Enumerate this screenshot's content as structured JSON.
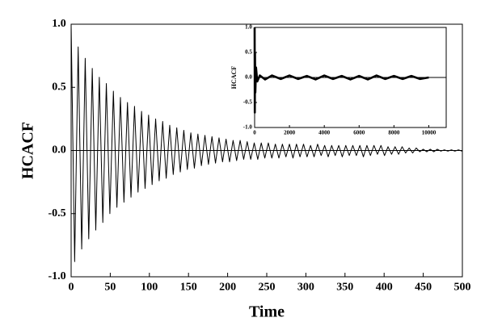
{
  "chart_data": [
    {
      "type": "line",
      "x_label": "Time",
      "y_label": "HCACF",
      "color": "#000000",
      "zero_line": true,
      "xlim": [
        0,
        500
      ],
      "ylim": [
        -1,
        1
      ],
      "xticks": [
        0,
        50,
        100,
        150,
        200,
        250,
        300,
        350,
        400,
        450,
        500
      ],
      "yticks": [
        {
          "value": -1,
          "label": "-1.0"
        },
        {
          "value": -0.5,
          "label": "-0.5"
        },
        {
          "value": 0,
          "label": "0.0"
        },
        {
          "value": 0.5,
          "label": "0.5"
        },
        {
          "value": 1,
          "label": "1.0"
        }
      ],
      "x": [
        0,
        4.5,
        9,
        13.5,
        18,
        22.5,
        27,
        31.5,
        36,
        40.5,
        45,
        49.5,
        54,
        58.5,
        63,
        67.5,
        72,
        76.5,
        81,
        85.5,
        90,
        94.5,
        99,
        103.5,
        108,
        112.5,
        117,
        121.5,
        126,
        130.5,
        135,
        139.5,
        144,
        148.5,
        153,
        157.5,
        162,
        166.5,
        171,
        175.5,
        180,
        184.5,
        189,
        193.5,
        198,
        202.5,
        207,
        211.5,
        216,
        220.5,
        225,
        229.5,
        234,
        238.5,
        243,
        247.5,
        252,
        256.5,
        261,
        265.5,
        270,
        274.5,
        279,
        283.5,
        288,
        292.5,
        297,
        301.5,
        306,
        310.5,
        315,
        319.5,
        324,
        328.5,
        333,
        337.5,
        342,
        346.5,
        351,
        355.5,
        360,
        364.5,
        369,
        373.5,
        378,
        382.5,
        387,
        391.5,
        396,
        400.5,
        405,
        409.5,
        414,
        418.5,
        423,
        427.5,
        432,
        436.5,
        441,
        445.5,
        450,
        454.5,
        459,
        463.5,
        468,
        472.5,
        477,
        481.5,
        486,
        490.5,
        495,
        499.5
      ],
      "values": [
        1.0,
        -0.88,
        0.82,
        -0.78,
        0.73,
        -0.7,
        0.65,
        -0.63,
        0.58,
        -0.57,
        0.53,
        -0.5,
        0.47,
        -0.45,
        0.42,
        -0.41,
        0.38,
        -0.37,
        0.35,
        -0.33,
        0.31,
        -0.3,
        0.28,
        -0.27,
        0.25,
        -0.24,
        0.23,
        -0.22,
        0.2,
        -0.19,
        0.18,
        -0.17,
        0.16,
        -0.15,
        0.14,
        -0.14,
        0.13,
        -0.12,
        0.12,
        -0.11,
        0.11,
        -0.1,
        0.1,
        -0.09,
        0.09,
        -0.09,
        0.08,
        -0.08,
        0.08,
        -0.07,
        0.07,
        -0.07,
        0.06,
        -0.07,
        0.06,
        -0.06,
        0.06,
        -0.06,
        0.05,
        -0.06,
        0.05,
        -0.05,
        0.05,
        -0.06,
        0.05,
        -0.05,
        0.05,
        -0.05,
        0.04,
        -0.05,
        0.05,
        -0.04,
        0.04,
        -0.05,
        0.04,
        -0.04,
        0.04,
        -0.05,
        0.04,
        -0.04,
        0.04,
        -0.04,
        0.04,
        -0.05,
        0.04,
        -0.04,
        0.04,
        -0.03,
        0.04,
        -0.04,
        0.03,
        -0.03,
        0.03,
        -0.03,
        0.03,
        -0.02,
        0.02,
        -0.02,
        0.02,
        -0.01,
        0.01,
        -0.01,
        0.01,
        -0.01,
        0.01,
        -0.005,
        0.005,
        -0.005,
        0.005,
        -0.005,
        0.005,
        -0.005
      ]
    },
    {
      "type": "line",
      "y_label": "HCACF",
      "color": "#000000",
      "zero_line": true,
      "xlim": [
        0,
        11000
      ],
      "ylim": [
        -1,
        1
      ],
      "xticks": [
        0,
        2000,
        4000,
        6000,
        8000,
        10000
      ],
      "yticks": [
        {
          "value": -1,
          "label": "-1.0"
        },
        {
          "value": -0.5,
          "label": "-0.5"
        },
        {
          "value": 0,
          "label": "0.0"
        },
        {
          "value": 0.5,
          "label": "0.5"
        },
        {
          "value": 1,
          "label": "1.0"
        }
      ],
      "x": [
        0,
        10,
        20,
        40,
        80,
        150,
        300,
        600,
        1000,
        1500,
        2000,
        2500,
        3000,
        3500,
        4000,
        4500,
        5000,
        5500,
        6000,
        6500,
        7000,
        7500,
        8000,
        8500,
        9000,
        9500,
        10000
      ],
      "values": [
        1.0,
        -0.7,
        0.5,
        -0.3,
        0.2,
        -0.08,
        0.04,
        -0.04,
        0.04,
        -0.03,
        0.04,
        -0.03,
        0.03,
        -0.04,
        0.04,
        -0.03,
        0.03,
        -0.04,
        0.03,
        -0.04,
        0.04,
        -0.03,
        0.03,
        -0.03,
        0.03,
        -0.03,
        0.0
      ]
    }
  ]
}
